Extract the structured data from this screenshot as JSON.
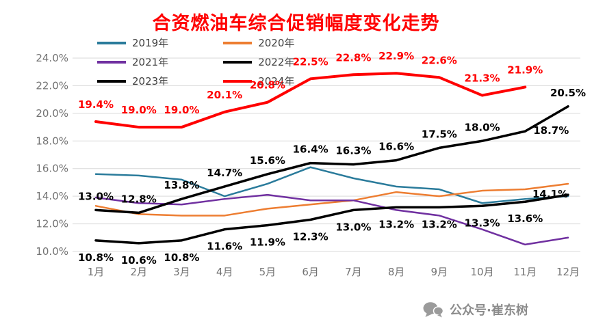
{
  "watermark": {
    "text": "公众号·崔东树",
    "icon": "chat-bubbles-icon"
  },
  "chart_data": {
    "type": "line",
    "title": "合资燃油车综合促销幅度变化走势",
    "title_color": "#FF0000",
    "categories": [
      "1月",
      "2月",
      "3月",
      "4月",
      "5月",
      "6月",
      "7月",
      "8月",
      "9月",
      "10月",
      "11月",
      "12月"
    ],
    "xlabel": "",
    "ylabel": "",
    "ylim": [
      10.0,
      24.0
    ],
    "ytick_step": 2.0,
    "ytick_labels": [
      "10.0%",
      "12.0%",
      "14.0%",
      "16.0%",
      "18.0%",
      "20.0%",
      "22.0%",
      "24.0%"
    ],
    "grid": true,
    "legend_position": "top-left",
    "series": [
      {
        "name": "2019年",
        "color": "#2A7B9B",
        "data_labels": false,
        "values": [
          15.6,
          15.5,
          15.2,
          14.0,
          14.9,
          16.1,
          15.3,
          14.7,
          14.5,
          13.5,
          13.8,
          14.0
        ]
      },
      {
        "name": "2020年",
        "color": "#ED7D31",
        "data_labels": false,
        "values": [
          13.3,
          12.7,
          12.6,
          12.6,
          13.1,
          13.4,
          13.7,
          14.3,
          14.0,
          14.4,
          14.5,
          14.9
        ]
      },
      {
        "name": "2021年",
        "color": "#7030A0",
        "data_labels": false,
        "values": [
          13.9,
          13.5,
          13.4,
          13.8,
          14.1,
          13.7,
          13.7,
          13.0,
          12.6,
          11.6,
          10.5,
          11.0
        ]
      },
      {
        "name": "2022年",
        "color": "#000000",
        "data_labels": true,
        "label_position": "below",
        "values": [
          10.8,
          10.6,
          10.8,
          11.6,
          11.9,
          12.3,
          13.0,
          13.2,
          13.2,
          13.3,
          13.6,
          14.1
        ]
      },
      {
        "name": "2023年",
        "color": "#000000",
        "data_labels": true,
        "label_position": "above",
        "values": [
          13.0,
          12.8,
          13.8,
          14.7,
          15.6,
          16.4,
          16.3,
          16.6,
          17.5,
          18.0,
          18.7,
          20.5
        ]
      },
      {
        "name": "2024年",
        "color": "#FF0000",
        "data_labels": true,
        "label_position": "above",
        "values": [
          19.4,
          19.0,
          19.0,
          20.1,
          20.8,
          22.5,
          22.8,
          22.9,
          22.6,
          21.3,
          21.9
        ]
      }
    ]
  }
}
